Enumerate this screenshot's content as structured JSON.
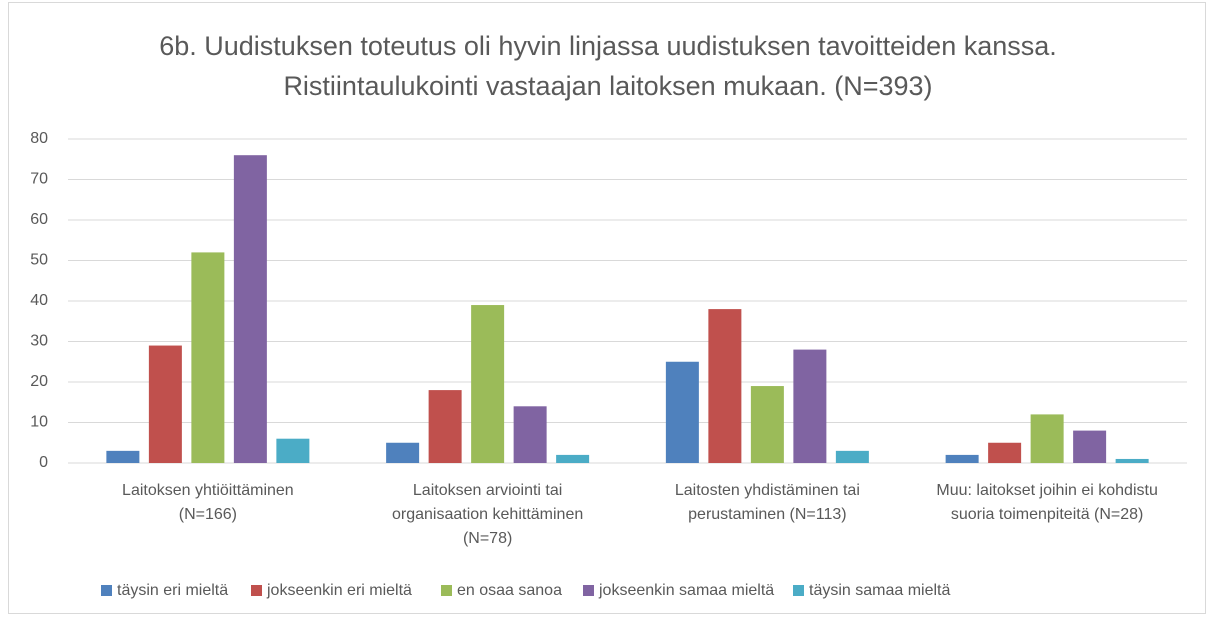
{
  "chart_data": {
    "type": "bar",
    "title": "6b. Uudistuksen toteutus oli hyvin linjassa uudistuksen tavoitteiden kanssa. Ristiintaulukointi vastaajan laitoksen mukaan. (N=393)",
    "categories": [
      [
        "Laitoksen yhtiöittäminen",
        "(N=166)"
      ],
      [
        "Laitoksen arviointi tai",
        "organisaation kehittäminen",
        "(N=78)"
      ],
      [
        "Laitosten yhdistäminen tai",
        "perustaminen (N=113)"
      ],
      [
        "Muu: laitokset joihin ei kohdistu",
        "suoria toimenpiteitä  (N=28)"
      ]
    ],
    "series": [
      {
        "name": "täysin eri mieltä",
        "color": "#4f81bd",
        "values": [
          3,
          5,
          25,
          2
        ]
      },
      {
        "name": "jokseenkin eri mieltä",
        "color": "#c0504d",
        "values": [
          29,
          18,
          38,
          5
        ]
      },
      {
        "name": "en osaa sanoa",
        "color": "#9bbb59",
        "values": [
          52,
          39,
          19,
          12
        ]
      },
      {
        "name": "jokseenkin samaa mieltä",
        "color": "#8064a2",
        "values": [
          76,
          14,
          28,
          8
        ]
      },
      {
        "name": "täysin samaa mieltä",
        "color": "#4bacc6",
        "values": [
          6,
          2,
          3,
          1
        ]
      }
    ],
    "ylim": [
      0,
      80
    ],
    "yticks": [
      0,
      10,
      20,
      30,
      40,
      50,
      60,
      70,
      80
    ],
    "grid": true,
    "legend": "bottom"
  }
}
